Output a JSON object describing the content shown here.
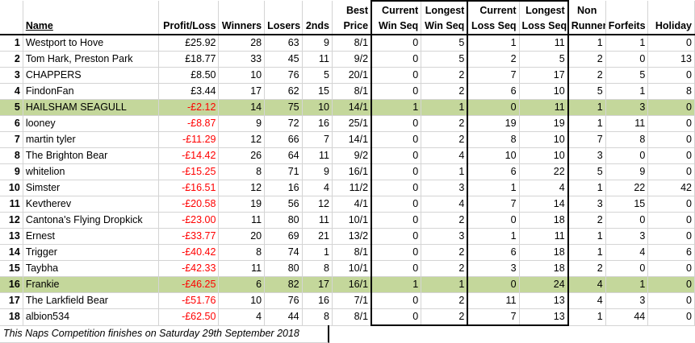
{
  "headers": {
    "name": "Name",
    "profit_loss": "Profit/Loss",
    "winners": "Winners",
    "losers": "Losers",
    "seconds": "2nds",
    "best_price": [
      "Best",
      "Price"
    ],
    "current_win_seq": [
      "Current",
      "Win Seq"
    ],
    "longest_win_seq": [
      "Longest",
      "Win Seq"
    ],
    "current_loss_seq": [
      "Current",
      "Loss Seq"
    ],
    "longest_loss_seq": [
      "Longest",
      "Loss Seq"
    ],
    "non_runners": [
      "Non",
      "Runners"
    ],
    "forfeits": "Forfeits",
    "holiday": "Holiday"
  },
  "rows": [
    {
      "rank": "1",
      "name": "Westport to Hove",
      "pl": "£25.92",
      "neg": false,
      "w": "28",
      "l": "63",
      "s": "9",
      "bp": "8/1",
      "cws": "0",
      "lws": "5",
      "cls": "1",
      "lls": "11",
      "nr": "1",
      "f": "1",
      "h": "0",
      "hl": false
    },
    {
      "rank": "2",
      "name": "Tom Hark, Preston Park",
      "pl": "£18.77",
      "neg": false,
      "w": "33",
      "l": "45",
      "s": "11",
      "bp": "9/2",
      "cws": "0",
      "lws": "5",
      "cls": "2",
      "lls": "5",
      "nr": "2",
      "f": "0",
      "h": "13",
      "hl": false
    },
    {
      "rank": "3",
      "name": "CHAPPERS",
      "pl": "£8.50",
      "neg": false,
      "w": "10",
      "l": "76",
      "s": "5",
      "bp": "20/1",
      "cws": "0",
      "lws": "2",
      "cls": "7",
      "lls": "17",
      "nr": "2",
      "f": "5",
      "h": "0",
      "hl": false
    },
    {
      "rank": "4",
      "name": "FindonFan",
      "pl": "£3.44",
      "neg": false,
      "w": "17",
      "l": "62",
      "s": "15",
      "bp": "8/1",
      "cws": "0",
      "lws": "2",
      "cls": "6",
      "lls": "10",
      "nr": "5",
      "f": "1",
      "h": "8",
      "hl": false
    },
    {
      "rank": "5",
      "name": "HAILSHAM SEAGULL",
      "pl": "-£2.12",
      "neg": true,
      "w": "14",
      "l": "75",
      "s": "10",
      "bp": "14/1",
      "cws": "1",
      "lws": "1",
      "cls": "0",
      "lls": "11",
      "nr": "1",
      "f": "3",
      "h": "0",
      "hl": true
    },
    {
      "rank": "6",
      "name": "looney",
      "pl": "-£8.87",
      "neg": true,
      "w": "9",
      "l": "72",
      "s": "16",
      "bp": "25/1",
      "cws": "0",
      "lws": "2",
      "cls": "19",
      "lls": "19",
      "nr": "1",
      "f": "11",
      "h": "0",
      "hl": false
    },
    {
      "rank": "7",
      "name": "martin tyler",
      "pl": "-£11.29",
      "neg": true,
      "w": "12",
      "l": "66",
      "s": "7",
      "bp": "14/1",
      "cws": "0",
      "lws": "2",
      "cls": "8",
      "lls": "10",
      "nr": "7",
      "f": "8",
      "h": "0",
      "hl": false
    },
    {
      "rank": "8",
      "name": "The Brighton Bear",
      "pl": "-£14.42",
      "neg": true,
      "w": "26",
      "l": "64",
      "s": "11",
      "bp": "9/2",
      "cws": "0",
      "lws": "4",
      "cls": "10",
      "lls": "10",
      "nr": "3",
      "f": "0",
      "h": "0",
      "hl": false
    },
    {
      "rank": "9",
      "name": "whitelion",
      "pl": "-£15.25",
      "neg": true,
      "w": "8",
      "l": "71",
      "s": "9",
      "bp": "16/1",
      "cws": "0",
      "lws": "1",
      "cls": "6",
      "lls": "22",
      "nr": "5",
      "f": "9",
      "h": "0",
      "hl": false
    },
    {
      "rank": "10",
      "name": "Simster",
      "pl": "-£16.51",
      "neg": true,
      "w": "12",
      "l": "16",
      "s": "4",
      "bp": "11/2",
      "cws": "0",
      "lws": "3",
      "cls": "1",
      "lls": "4",
      "nr": "1",
      "f": "22",
      "h": "42",
      "hl": false
    },
    {
      "rank": "11",
      "name": "Kevtherev",
      "pl": "-£20.58",
      "neg": true,
      "w": "19",
      "l": "56",
      "s": "12",
      "bp": "4/1",
      "cws": "0",
      "lws": "4",
      "cls": "7",
      "lls": "14",
      "nr": "3",
      "f": "15",
      "h": "0",
      "hl": false
    },
    {
      "rank": "12",
      "name": "Cantona's Flying Dropkick",
      "pl": "-£23.00",
      "neg": true,
      "w": "11",
      "l": "80",
      "s": "11",
      "bp": "10/1",
      "cws": "0",
      "lws": "2",
      "cls": "0",
      "lls": "18",
      "nr": "2",
      "f": "0",
      "h": "0",
      "hl": false
    },
    {
      "rank": "13",
      "name": "Ernest",
      "pl": "-£33.77",
      "neg": true,
      "w": "20",
      "l": "69",
      "s": "21",
      "bp": "13/2",
      "cws": "0",
      "lws": "3",
      "cls": "1",
      "lls": "11",
      "nr": "1",
      "f": "3",
      "h": "0",
      "hl": false
    },
    {
      "rank": "14",
      "name": "Trigger",
      "pl": "-£40.42",
      "neg": true,
      "w": "8",
      "l": "74",
      "s": "1",
      "bp": "8/1",
      "cws": "0",
      "lws": "2",
      "cls": "6",
      "lls": "18",
      "nr": "1",
      "f": "4",
      "h": "6",
      "hl": false
    },
    {
      "rank": "15",
      "name": "Taybha",
      "pl": "-£42.33",
      "neg": true,
      "w": "11",
      "l": "80",
      "s": "8",
      "bp": "10/1",
      "cws": "0",
      "lws": "2",
      "cls": "3",
      "lls": "18",
      "nr": "2",
      "f": "0",
      "h": "0",
      "hl": false
    },
    {
      "rank": "16",
      "name": "Frankie",
      "pl": "-£46.25",
      "neg": true,
      "w": "6",
      "l": "82",
      "s": "17",
      "bp": "16/1",
      "cws": "1",
      "lws": "1",
      "cls": "0",
      "lls": "24",
      "nr": "4",
      "f": "1",
      "h": "0",
      "hl": true
    },
    {
      "rank": "17",
      "name": "The Larkfield Bear",
      "pl": "-£51.76",
      "neg": true,
      "w": "10",
      "l": "76",
      "s": "16",
      "bp": "7/1",
      "cws": "0",
      "lws": "2",
      "cls": "11",
      "lls": "13",
      "nr": "4",
      "f": "3",
      "h": "0",
      "hl": false
    },
    {
      "rank": "18",
      "name": "albion534",
      "pl": "-£62.50",
      "neg": true,
      "w": "4",
      "l": "44",
      "s": "8",
      "bp": "8/1",
      "cws": "0",
      "lws": "2",
      "cls": "7",
      "lls": "13",
      "nr": "1",
      "f": "44",
      "h": "0",
      "hl": false
    }
  ],
  "footer": "This Naps Competition finishes on Saturday 29th September 2018",
  "colors": {
    "highlight": "#c4d79b",
    "negative": "#ff0000",
    "gridline": "#d4d4d4"
  }
}
